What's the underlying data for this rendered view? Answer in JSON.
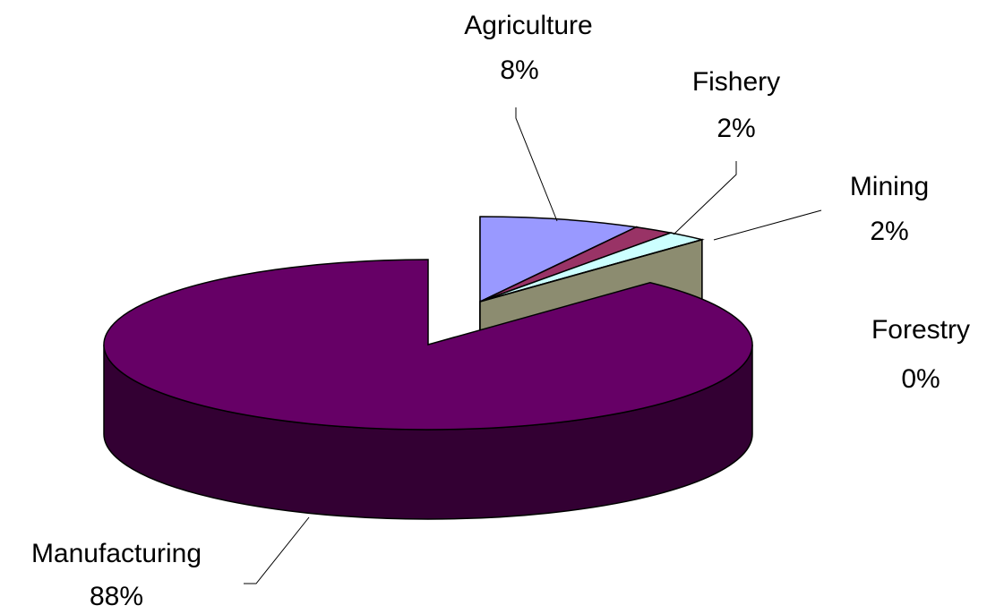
{
  "chart_data": {
    "type": "pie3d",
    "categories": [
      "Agriculture",
      "Fishery",
      "Mining",
      "Forestry",
      "Manufacturing"
    ],
    "values": [
      8,
      2,
      2,
      0,
      88
    ],
    "value_labels": [
      "8%",
      "2%",
      "2%",
      "0%",
      "88%"
    ],
    "colors": [
      "#9999ff",
      "#993366",
      "#ccffff",
      "#ffffcc",
      "#660066"
    ]
  }
}
